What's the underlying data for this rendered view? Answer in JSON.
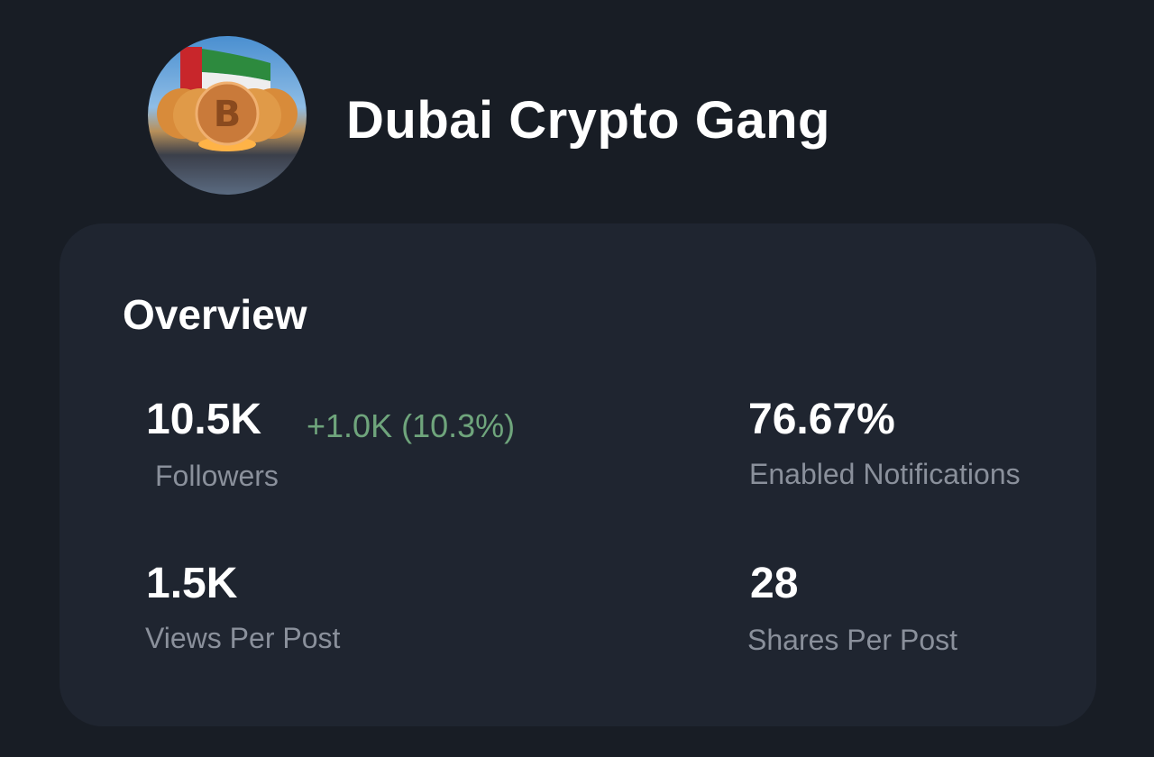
{
  "channel": {
    "name": "Dubai Crypto Gang",
    "avatar_icon": "bitcoin-uae-flag-avatar"
  },
  "overview": {
    "title": "Overview",
    "stats": [
      {
        "value": "10.5K",
        "label": "Followers",
        "delta": "+1.0K (10.3%)"
      },
      {
        "value": "76.67%",
        "label": "Enabled Notifications"
      },
      {
        "value": "1.5K",
        "label": "Views Per Post"
      },
      {
        "value": "28",
        "label": "Shares Per Post"
      }
    ]
  },
  "colors": {
    "background": "#181d25",
    "card": "#1f2530",
    "positive": "#6fa57c",
    "label": "#8a909b"
  }
}
